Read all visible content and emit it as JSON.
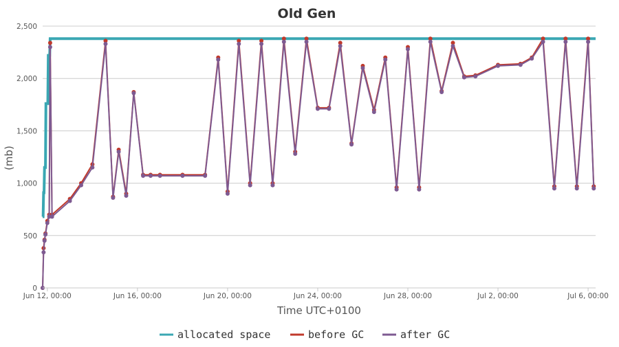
{
  "chart_data": {
    "type": "line",
    "title": "Old Gen",
    "xlabel": "Time UTC+0100",
    "ylabel": "(mb)",
    "ylim": [
      0,
      2500
    ],
    "yticks": [
      0,
      500,
      1000,
      1500,
      2000,
      2500
    ],
    "ytick_labels": [
      "0",
      "500",
      "1,000",
      "1,500",
      "2,000",
      "2,500"
    ],
    "xlim": [
      "2021-06-11T19:00",
      "2021-07-06T08:00"
    ],
    "xticks": [
      "2021-06-12T00:00",
      "2021-06-16T00:00",
      "2021-06-20T00:00",
      "2021-06-24T00:00",
      "2021-06-28T00:00",
      "2021-07-02T00:00",
      "2021-07-06T00:00"
    ],
    "xtick_labels": [
      "Jun 12, 00:00",
      "Jun 16, 00:00",
      "Jun 20, 00:00",
      "Jun 24, 00:00",
      "Jun 28, 00:00",
      "Jul 2, 00:00",
      "Jul 6, 00:00"
    ],
    "grid": true,
    "legend_position": "bottom",
    "series": [
      {
        "name": "allocated space",
        "color": "#3aa7b3",
        "x": [
          "2021-06-11T19:00",
          "2021-06-11T19:30",
          "2021-06-11T20:00",
          "2021-06-11T20:30",
          "2021-06-11T21:00",
          "2021-06-11T22:00",
          "2021-06-11T22:30",
          "2021-06-11T23:30",
          "2021-06-12T00:30",
          "2021-06-12T01:00",
          "2021-06-12T02:30",
          "2021-06-12T03:00",
          "2021-06-12T05:00",
          "2021-06-12T06:00",
          "2021-07-06T08:00"
        ],
        "values": [
          680,
          680,
          910,
          910,
          1150,
          1150,
          1760,
          1760,
          1760,
          2220,
          2220,
          2380,
          2380,
          2380,
          2380
        ]
      },
      {
        "name": "before GC",
        "color": "#c0392b",
        "x": [
          "2021-06-11T19:00",
          "2021-06-11T20:00",
          "2021-06-11T21:00",
          "2021-06-11T22:00",
          "2021-06-12T00:00",
          "2021-06-12T02:00",
          "2021-06-12T03:00",
          "2021-06-12T05:00",
          "2021-06-13T00:00",
          "2021-06-13T12:00",
          "2021-06-14T00:00",
          "2021-06-14T14:00",
          "2021-06-14T22:00",
          "2021-06-15T04:00",
          "2021-06-15T12:00",
          "2021-06-15T20:00",
          "2021-06-16T06:00",
          "2021-06-16T14:00",
          "2021-06-17T00:00",
          "2021-06-18T00:00",
          "2021-06-19T00:00",
          "2021-06-19T14:00",
          "2021-06-20T00:00",
          "2021-06-20T12:00",
          "2021-06-21T00:00",
          "2021-06-21T12:00",
          "2021-06-22T00:00",
          "2021-06-22T12:00",
          "2021-06-23T00:00",
          "2021-06-23T12:00",
          "2021-06-24T00:00",
          "2021-06-24T12:00",
          "2021-06-25T00:00",
          "2021-06-25T12:00",
          "2021-06-26T00:00",
          "2021-06-26T12:00",
          "2021-06-27T00:00",
          "2021-06-27T12:00",
          "2021-06-28T00:00",
          "2021-06-28T12:00",
          "2021-06-29T00:00",
          "2021-06-29T12:00",
          "2021-06-30T00:00",
          "2021-06-30T12:00",
          "2021-07-01T00:00",
          "2021-07-02T00:00",
          "2021-07-03T00:00",
          "2021-07-03T12:00",
          "2021-07-04T00:00",
          "2021-07-04T12:00",
          "2021-07-05T00:00",
          "2021-07-05T12:00",
          "2021-07-06T00:00",
          "2021-07-06T06:00"
        ],
        "values": [
          0,
          380,
          460,
          520,
          640,
          700,
          2340,
          700,
          850,
          1000,
          1180,
          2360,
          870,
          1320,
          900,
          1870,
          1080,
          1080,
          1080,
          1080,
          1080,
          2200,
          920,
          2360,
          1000,
          2360,
          1000,
          2380,
          1300,
          2380,
          1720,
          1720,
          2340,
          1380,
          2120,
          1700,
          2200,
          960,
          2300,
          960,
          2380,
          1880,
          2340,
          2020,
          2030,
          2130,
          2140,
          2200,
          2380,
          970,
          2380,
          970,
          2380,
          970
        ]
      },
      {
        "name": "after GC",
        "color": "#7e5a91",
        "x": [
          "2021-06-11T19:00",
          "2021-06-11T20:00",
          "2021-06-11T21:00",
          "2021-06-11T22:00",
          "2021-06-12T00:00",
          "2021-06-12T02:00",
          "2021-06-12T03:00",
          "2021-06-12T05:00",
          "2021-06-13T00:00",
          "2021-06-13T12:00",
          "2021-06-14T00:00",
          "2021-06-14T14:00",
          "2021-06-14T22:00",
          "2021-06-15T04:00",
          "2021-06-15T12:00",
          "2021-06-15T20:00",
          "2021-06-16T06:00",
          "2021-06-16T14:00",
          "2021-06-17T00:00",
          "2021-06-18T00:00",
          "2021-06-19T00:00",
          "2021-06-19T14:00",
          "2021-06-20T00:00",
          "2021-06-20T12:00",
          "2021-06-21T00:00",
          "2021-06-21T12:00",
          "2021-06-22T00:00",
          "2021-06-22T12:00",
          "2021-06-23T00:00",
          "2021-06-23T12:00",
          "2021-06-24T00:00",
          "2021-06-24T12:00",
          "2021-06-25T00:00",
          "2021-06-25T12:00",
          "2021-06-26T00:00",
          "2021-06-26T12:00",
          "2021-06-27T00:00",
          "2021-06-27T12:00",
          "2021-06-28T00:00",
          "2021-06-28T12:00",
          "2021-06-29T00:00",
          "2021-06-29T12:00",
          "2021-06-30T00:00",
          "2021-06-30T12:00",
          "2021-07-01T00:00",
          "2021-07-02T00:00",
          "2021-07-03T00:00",
          "2021-07-03T12:00",
          "2021-07-04T00:00",
          "2021-07-04T12:00",
          "2021-07-05T00:00",
          "2021-07-05T12:00",
          "2021-07-06T00:00",
          "2021-07-06T06:00"
        ],
        "values": [
          0,
          340,
          450,
          510,
          620,
          680,
          2300,
          680,
          830,
          980,
          1150,
          2330,
          860,
          1300,
          880,
          1860,
          1070,
          1070,
          1070,
          1070,
          1070,
          2180,
          900,
          2330,
          980,
          2330,
          980,
          2350,
          1280,
          2350,
          1710,
          1710,
          2310,
          1370,
          2100,
          1680,
          2180,
          940,
          2280,
          940,
          2350,
          1870,
          2310,
          2010,
          2020,
          2120,
          2130,
          2190,
          2350,
          950,
          2350,
          950,
          2350,
          950
        ]
      }
    ]
  }
}
